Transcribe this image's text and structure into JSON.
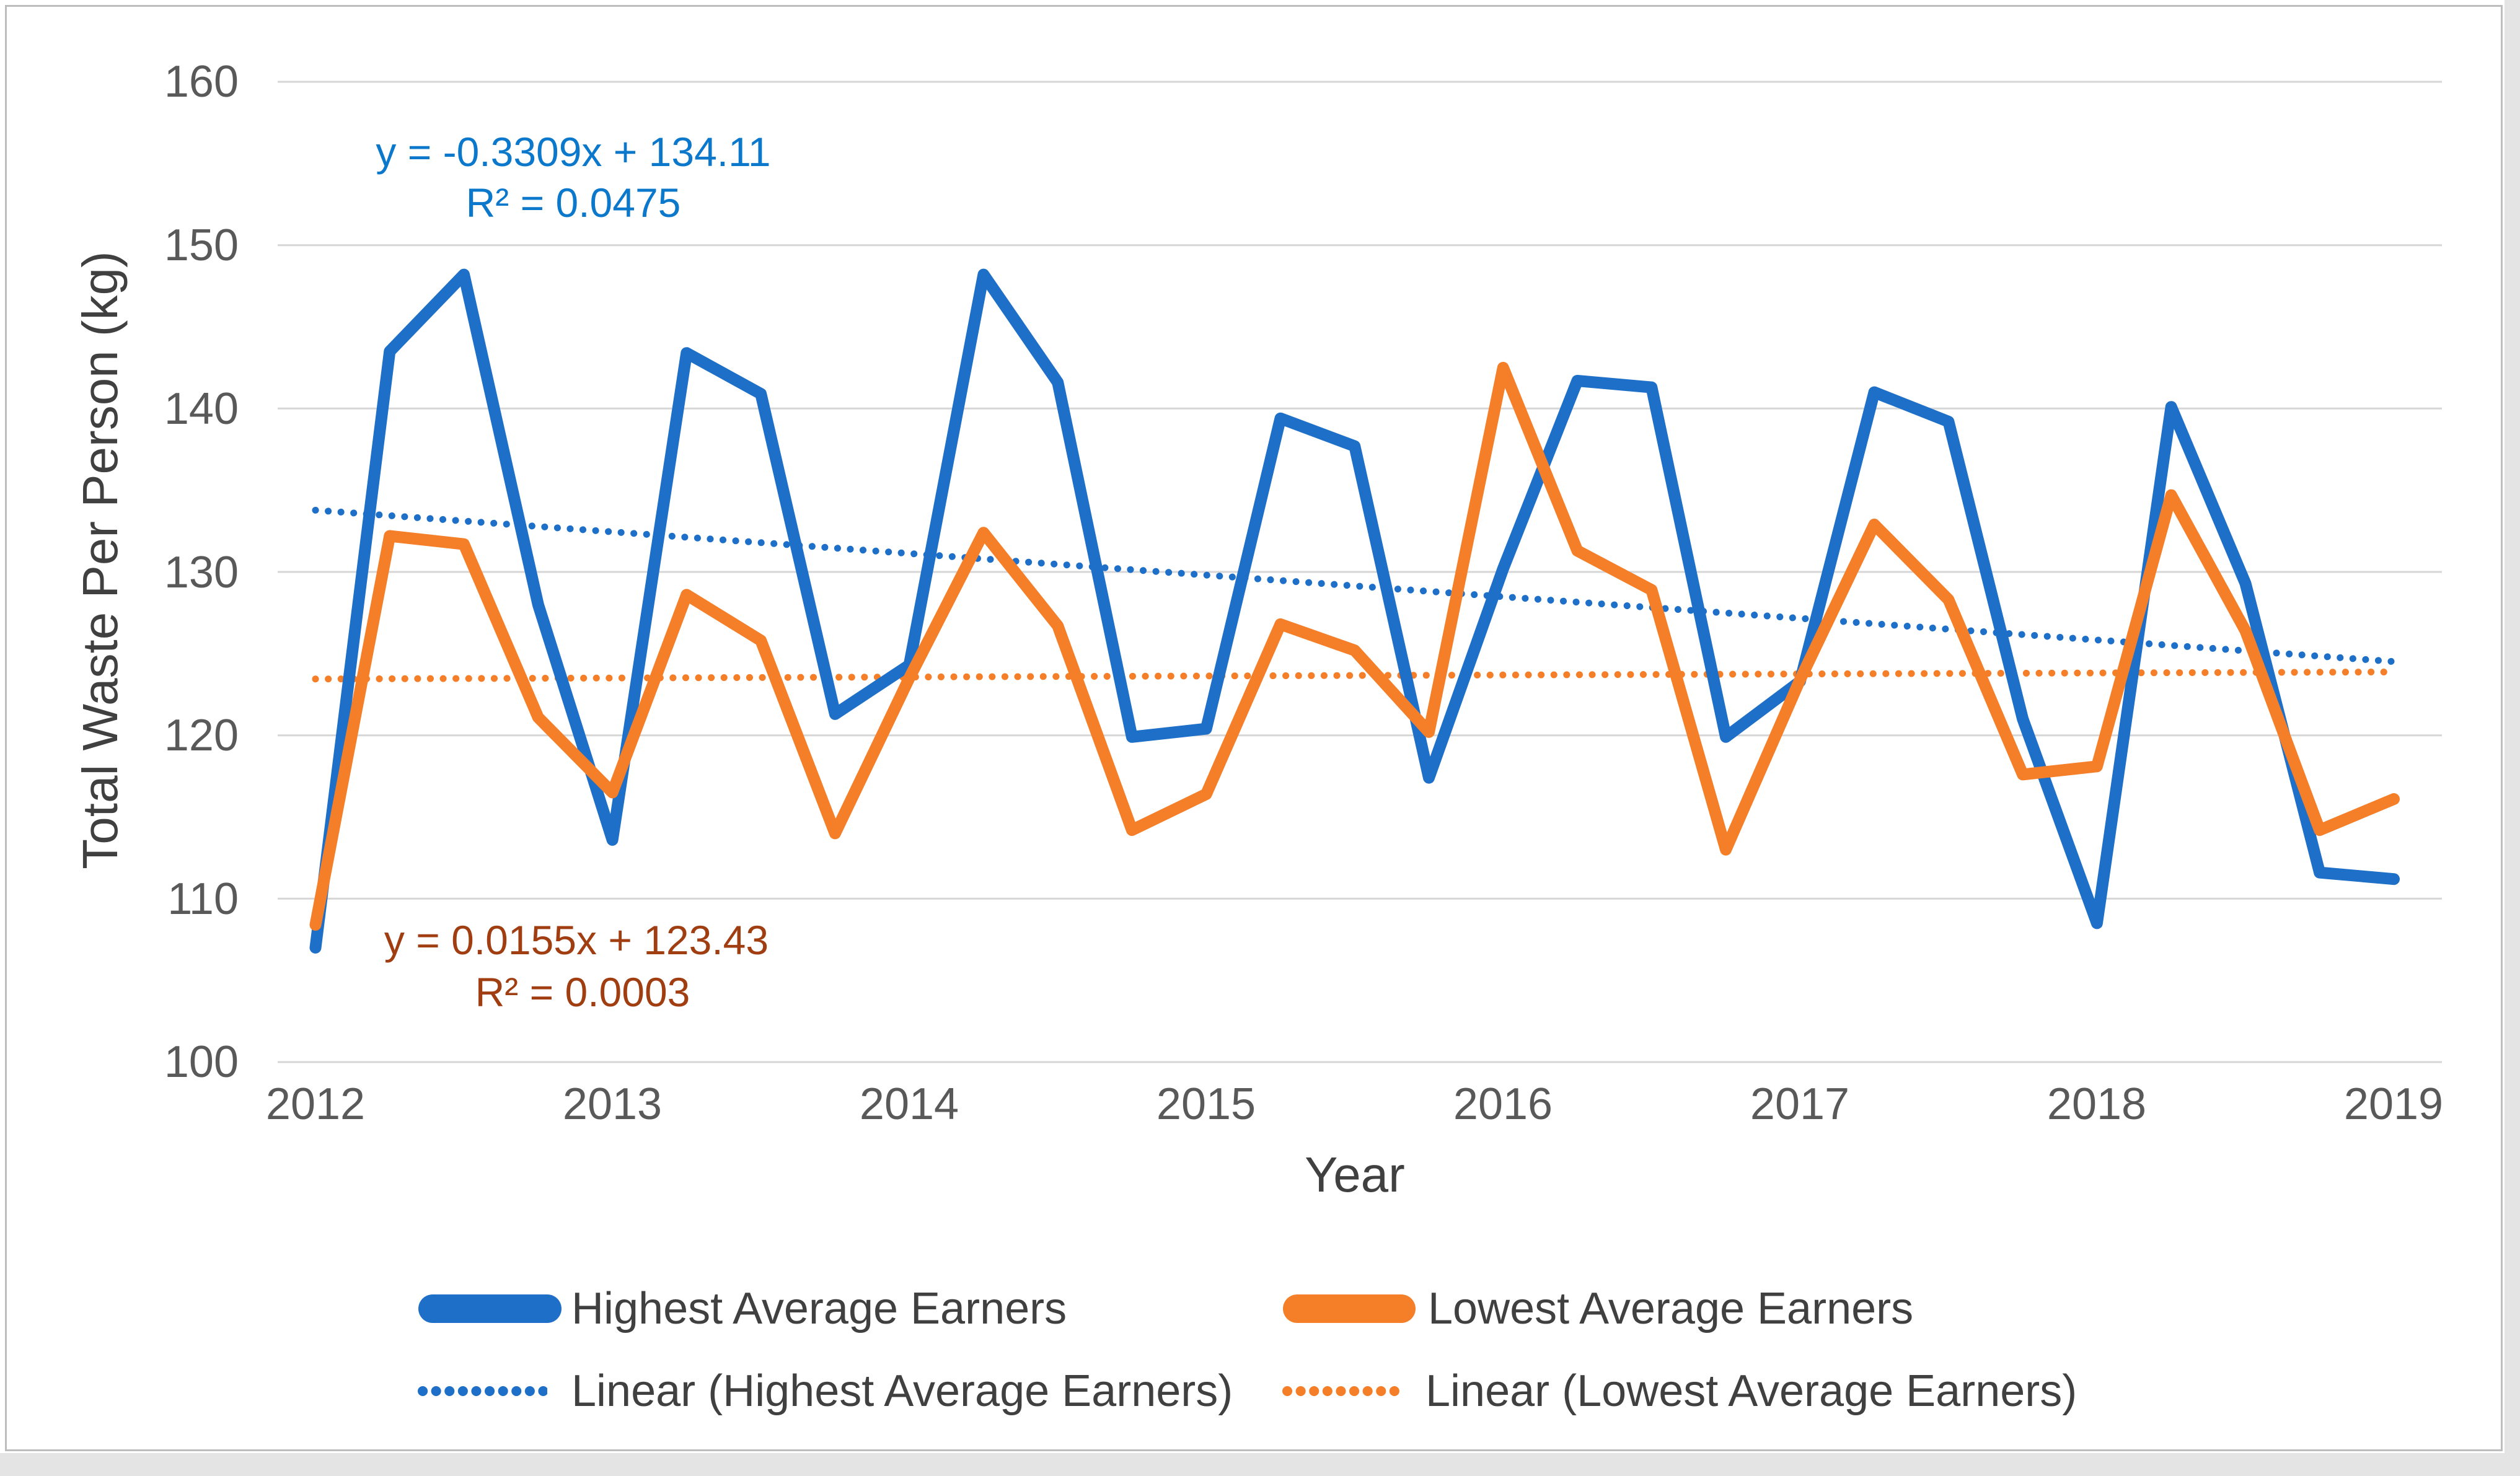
{
  "colors": {
    "series_blue": "#1E6FC8",
    "series_orange": "#F57E28",
    "equation_blue": "#0B78CC",
    "equation_orange": "#A03E12",
    "gridline": "#D6D6D6",
    "tick_label": "#595959",
    "axis_title": "#404040",
    "chart_border": "#BDBDBD"
  },
  "y_axis": {
    "title": "Total Waste Per Person (kg)",
    "ticks": [
      "160",
      "150",
      "140",
      "130",
      "120",
      "110",
      "100"
    ]
  },
  "x_axis": {
    "title": "Year",
    "ticks": [
      "2012",
      "2013",
      "2014",
      "2015",
      "2016",
      "2017",
      "2018",
      "2019"
    ]
  },
  "annotations": {
    "blue_equation": "y = -0.3309x + 134.11",
    "blue_r2": "R² = 0.0475",
    "orange_equation": "y = 0.0155x + 123.43",
    "orange_r2": "R² = 0.0003"
  },
  "legend": {
    "highest": "Highest Average Earners",
    "lowest": "Lowest Average Earners",
    "linear_highest": "Linear (Highest Average Earners)",
    "linear_lowest": "Linear (Lowest Average Earners)"
  },
  "chart_data": {
    "type": "line",
    "title": "",
    "xlabel": "Year",
    "ylabel": "Total Waste Per Person (kg)",
    "x_start": 2012,
    "x_step": 0.25,
    "x_range": [
      2012,
      2019
    ],
    "ylim": [
      100,
      160
    ],
    "y_ticks": [
      100,
      110,
      120,
      130,
      140,
      150,
      160
    ],
    "x_ticks": [
      2012,
      2013,
      2014,
      2015,
      2016,
      2017,
      2018,
      2019
    ],
    "grid": true,
    "legend_position": "bottom",
    "series": [
      {
        "name": "Highest Average Earners",
        "color": "#1E6FC8",
        "values": [
          107.0,
          143.5,
          148.2,
          128.0,
          113.6,
          143.4,
          140.9,
          121.3,
          124.3,
          148.2,
          141.6,
          119.9,
          120.4,
          139.4,
          137.7,
          117.4,
          130.2,
          141.7,
          141.3,
          119.9,
          123.3,
          141.0,
          139.2,
          121.0,
          108.5,
          140.1,
          129.3,
          111.6,
          111.2
        ]
      },
      {
        "name": "Lowest Average Earners",
        "color": "#F57E28",
        "values": [
          108.4,
          132.2,
          131.7,
          121.1,
          116.5,
          128.6,
          125.8,
          114.0,
          123.5,
          132.4,
          126.7,
          114.2,
          116.4,
          126.8,
          125.2,
          120.2,
          142.5,
          131.3,
          128.9,
          113.0,
          123.4,
          132.9,
          128.3,
          117.6,
          118.1,
          134.7,
          126.4,
          114.2,
          116.1
        ]
      }
    ],
    "trendlines": [
      {
        "name": "Linear (Highest Average Earners)",
        "color": "#1E6FC8",
        "slope": -0.3309,
        "intercept": 134.11,
        "r_squared": 0.0475,
        "x_index_range": [
          1,
          29
        ]
      },
      {
        "name": "Linear (Lowest Average Earners)",
        "color": "#F57E28",
        "slope": 0.0155,
        "intercept": 123.43,
        "r_squared": 0.0003,
        "x_index_range": [
          1,
          29
        ]
      }
    ]
  }
}
